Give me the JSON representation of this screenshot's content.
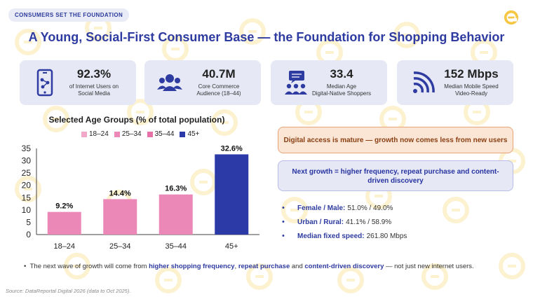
{
  "header": {
    "tag": "CONSUMERS SET THE FOUNDATION",
    "title": "A Young, Social-First Consumer Base — the Foundation for Shopping Behavior"
  },
  "stats": [
    {
      "value": "92.3%",
      "label_line1": "of Internet Users on",
      "label_line2": "Social Media",
      "icon": "smartphone-network-icon"
    },
    {
      "value": "40.7M",
      "label_line1": "Core Commerce",
      "label_line2": "Audience (18–44)",
      "icon": "people-group-icon"
    },
    {
      "value": "33.4",
      "label_line1": "Median Age",
      "label_line2": "Digital-Native Shoppers",
      "icon": "audience-chat-icon"
    },
    {
      "value": "152 Mbps",
      "label_line1": "Median Mobile Speed",
      "label_line2": "Video-Ready",
      "icon": "wifi-signal-icon"
    }
  ],
  "chart_data": {
    "type": "bar",
    "title": "Selected Age Groups (% of total population)",
    "categories": [
      "18–24",
      "25–34",
      "35–44",
      "45+"
    ],
    "values": [
      9.2,
      14.4,
      16.3,
      32.6
    ],
    "data_labels": [
      "9.2%",
      "14.4%",
      "16.3%",
      "32.6%"
    ],
    "colors": [
      "#ec88b8",
      "#ec88b8",
      "#ec88b8",
      "#2c3aa8"
    ],
    "legend": [
      {
        "name": "18–24",
        "color": "#f4a6c9"
      },
      {
        "name": "25–34",
        "color": "#ec88b8"
      },
      {
        "name": "35–44",
        "color": "#e670a8"
      },
      {
        "name": "45+",
        "color": "#2c3aa8"
      }
    ],
    "legend_position": "top",
    "ylim": [
      0,
      35
    ],
    "yticks": [
      0,
      5,
      10,
      15,
      20,
      25,
      30,
      35
    ],
    "grid": false
  },
  "callouts": {
    "orange": "Digital access is mature — growth now comes less from new users",
    "blue": "Next growth = higher frequency, repeat purchase and content-driven discovery"
  },
  "facts": [
    {
      "label": "Female / Male:",
      "value": "51.0% / 49.0%"
    },
    {
      "label": "Urban / Rural:",
      "value": "41.1% / 58.9%"
    },
    {
      "label": "Median fixed speed:",
      "value": "261.80 Mbps"
    }
  ],
  "bottom_note": {
    "part1": "The next wave of growth will come from ",
    "hl1": "higher shopping frequency",
    "part2": ", ",
    "hl2": "repeat purchase",
    "part3": " and ",
    "hl3": "content-driven discovery",
    "part4": " — not just new internet users."
  },
  "source": "Source: DataReportal Digital 2026 (data to Oct 2025).",
  "colors": {
    "brand_blue": "#2e3ba0",
    "accent_yellow": "#f6c744",
    "card_bg": "#e6e8f5"
  }
}
